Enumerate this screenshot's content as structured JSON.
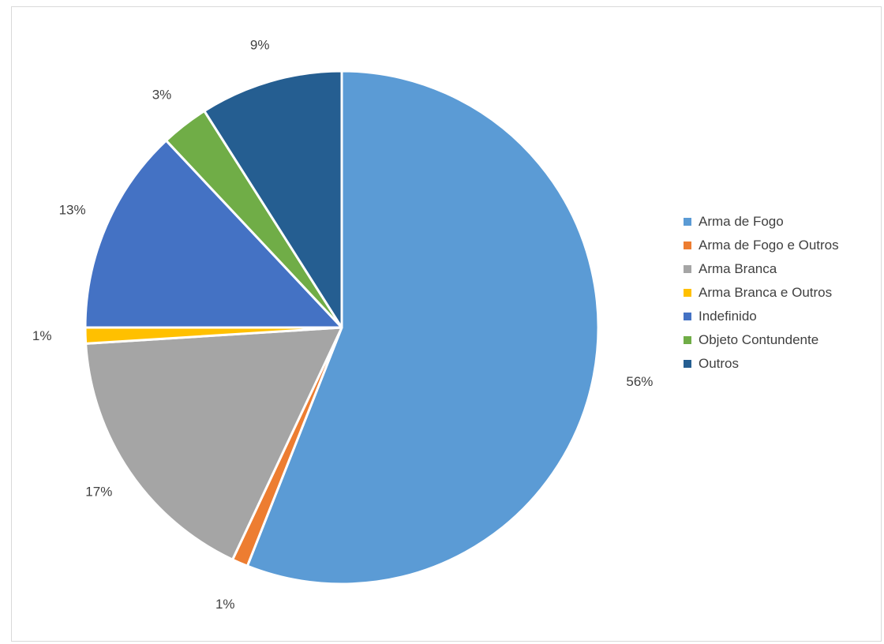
{
  "chart_data": {
    "type": "pie",
    "title": "",
    "legend_position": "right",
    "slices": [
      {
        "label": "Arma de Fogo",
        "value": 56,
        "display": "56%",
        "color": "#5b9bd5"
      },
      {
        "label": "Arma de Fogo e Outros",
        "value": 1,
        "display": "1%",
        "color": "#ed7d31"
      },
      {
        "label": "Arma Branca",
        "value": 17,
        "display": "17%",
        "color": "#a5a5a5"
      },
      {
        "label": "Arma Branca e Outros",
        "value": 1,
        "display": "1%",
        "color": "#ffc000"
      },
      {
        "label": "Indefinido",
        "value": 13,
        "display": "13%",
        "color": "#4472c4"
      },
      {
        "label": "Objeto Contundente",
        "value": 3,
        "display": "3%",
        "color": "#70ad47"
      },
      {
        "label": "Outros",
        "value": 9,
        "display": "9%",
        "color": "#255e91"
      }
    ]
  }
}
